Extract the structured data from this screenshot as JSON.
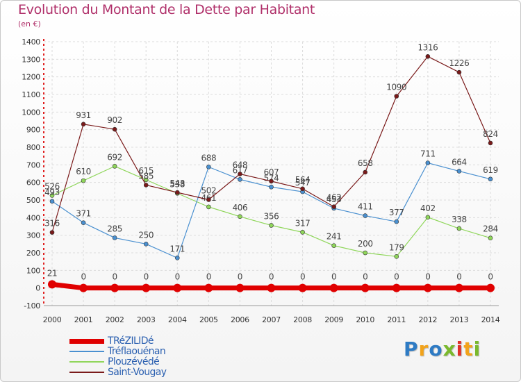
{
  "title": "Evolution du Montant de la Dette par Habitant",
  "unit_label": "(en €)",
  "logo": {
    "text": "Proxiti",
    "letter_colors": [
      "#2e7bc4",
      "#f2a31b",
      "#2e7bc4",
      "#7ab92d",
      "#e0312a",
      "#f2a31b",
      "#7ab92d"
    ]
  },
  "chart_data": {
    "type": "line",
    "x": [
      2000,
      2001,
      2002,
      2003,
      2004,
      2005,
      2006,
      2007,
      2008,
      2009,
      2010,
      2011,
      2012,
      2013,
      2014
    ],
    "ylim": [
      -100,
      1400
    ],
    "yticks": [
      -100,
      0,
      100,
      200,
      300,
      400,
      500,
      600,
      700,
      800,
      900,
      1000,
      1100,
      1200,
      1300,
      1400
    ],
    "grid": "horizontal",
    "legend_position": "bottom-left",
    "series": [
      {
        "name": "TRéZILIDé",
        "color": "#e00000",
        "values": [
          21,
          0,
          0,
          0,
          0,
          0,
          0,
          0,
          0,
          0,
          0,
          0,
          0,
          0,
          0
        ],
        "labels": [
          "21",
          "0",
          "0",
          "0",
          "0",
          "0",
          "0",
          "0",
          "0",
          "0",
          "0",
          "0",
          "0",
          "0",
          "0"
        ]
      },
      {
        "name": "Tréflaouénan",
        "color": "#4a90d0",
        "values": [
          493,
          371,
          285,
          250,
          171,
          688,
          617,
          574,
          547,
          453,
          411,
          377,
          711,
          664,
          619
        ],
        "labels": [
          "493",
          "371",
          "285",
          "250",
          "171",
          "688",
          "617",
          "574",
          "547",
          "453",
          "411",
          "377",
          "711",
          "664",
          "619"
        ]
      },
      {
        "name": "Plouzévédé",
        "color": "#8fd65a",
        "values": [
          526,
          610,
          692,
          615,
          538,
          461,
          406,
          356,
          317,
          241,
          200,
          179,
          402,
          338,
          284
        ],
        "labels": [
          "526",
          "610",
          "692",
          "615",
          "538",
          "461",
          "406",
          "356",
          "317",
          "241",
          "200",
          "179",
          "402",
          "338",
          "284"
        ]
      },
      {
        "name": "Saint-Vougay",
        "color": "#7a1a1a",
        "values": [
          316,
          931,
          902,
          585,
          543,
          502,
          648,
          607,
          564,
          462,
          658,
          1090,
          1316,
          1226,
          824
        ],
        "labels": [
          "316",
          "931",
          "902",
          "585",
          "543",
          "502",
          "648",
          "607",
          "564",
          "462",
          "658",
          "1090",
          "1316",
          "1226",
          "824"
        ]
      }
    ]
  }
}
